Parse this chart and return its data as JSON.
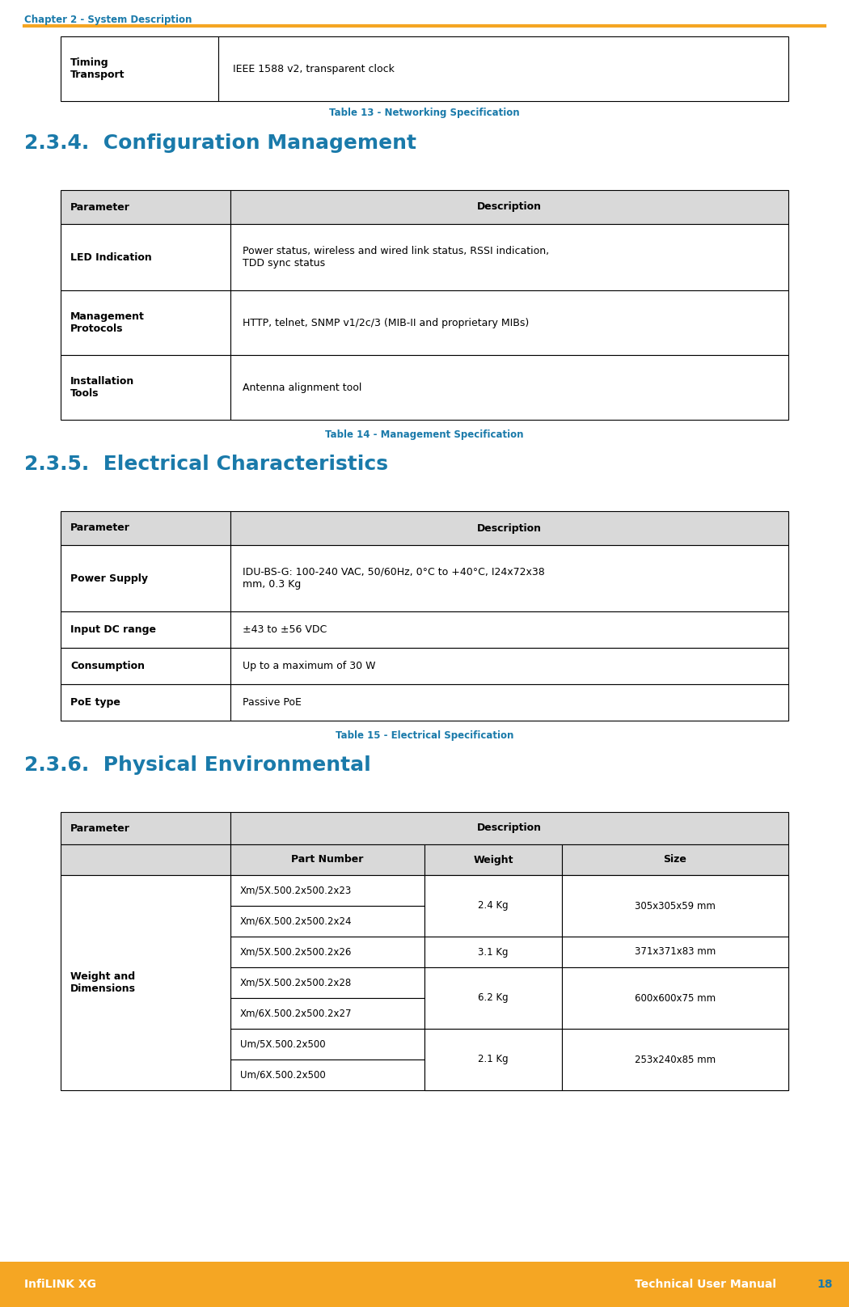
{
  "page_bg": "#ffffff",
  "header_text": "Chapter 2 - System Description",
  "header_color": "#1a7aaa",
  "header_line_color": "#f5a623",
  "footer_bg": "#f5a623",
  "footer_left": "InfiLINK XG",
  "footer_right": "Technical User Manual",
  "footer_page": "18",
  "footer_text_color": "#ffffff",
  "footer_page_color": "#1a7aaa",
  "table13_caption": "Table 13 - Networking Specification",
  "table13_caption_color": "#1a7aaa",
  "section234_title": "2.3.4.  Configuration Management",
  "section234_color": "#1a7aaa",
  "table14_caption": "Table 14 - Management Specification",
  "table14_caption_color": "#1a7aaa",
  "table14_rows": [
    [
      "LED Indication",
      "Power status, wireless and wired link status, RSSI indication,\nTDD sync status"
    ],
    [
      "Management\nProtocols",
      "HTTP, telnet, SNMP v1/2c/3 (MIB-II and proprietary MIBs)"
    ],
    [
      "Installation\nTools",
      "Antenna alignment tool"
    ]
  ],
  "section235_title": "2.3.5.  Electrical Characteristics",
  "section235_color": "#1a7aaa",
  "table15_caption": "Table 15 - Electrical Specification",
  "table15_caption_color": "#1a7aaa",
  "table15_rows": [
    [
      "Power Supply",
      "IDU-BS-G: 100-240 VAC, 50/60Hz, 0°C to +40°C, I24x72x38\nmm, 0.3 Kg"
    ],
    [
      "Input DC range",
      "±43 to ±56 VDC"
    ],
    [
      "Consumption",
      "Up to a maximum of 30 W"
    ],
    [
      "PoE type",
      "Passive PoE"
    ]
  ],
  "section236_title": "2.3.6.  Physical Environmental",
  "section236_color": "#1a7aaa",
  "table16_data": [
    [
      "Xm/5X.500.2x500.2x23",
      "2.4 Kg",
      "305x305x59 mm"
    ],
    [
      "Xm/6X.500.2x500.2x24",
      "",
      ""
    ],
    [
      "Xm/5X.500.2x500.2x26",
      "3.1 Kg",
      "371x371x83 mm"
    ],
    [
      "Xm/5X.500.2x500.2x28",
      "6.2 Kg",
      "600x600x75 mm"
    ],
    [
      "Xm/6X.500.2x500.2x27",
      "",
      ""
    ],
    [
      "Um/5X.500.2x500",
      "2.1 Kg",
      "253x240x85 mm"
    ],
    [
      "Um/6X.500.2x500",
      "",
      ""
    ]
  ],
  "table16_spans": [
    [
      0,
      1,
      "2.4 Kg",
      "305x305x59 mm"
    ],
    [
      2,
      2,
      "3.1 Kg",
      "371x371x83 mm"
    ],
    [
      3,
      4,
      "6.2 Kg",
      "600x600x75 mm"
    ],
    [
      5,
      6,
      "2.1 Kg",
      "253x240x85 mm"
    ]
  ],
  "table_header_bg": "#d9d9d9",
  "table_border_color": "#000000"
}
